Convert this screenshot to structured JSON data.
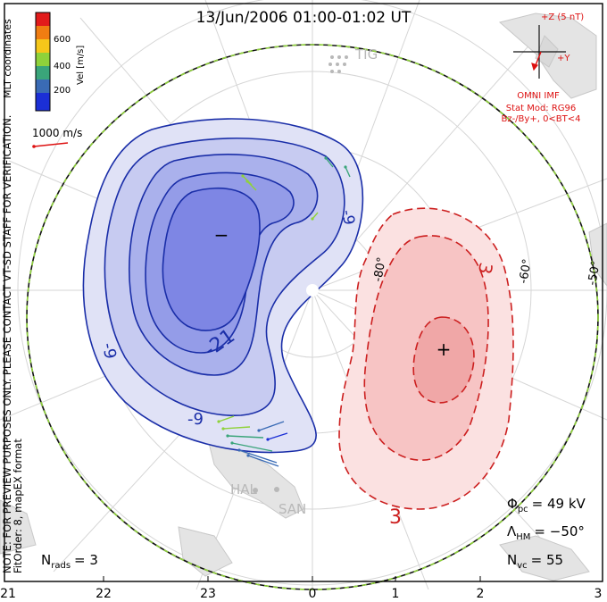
{
  "title": "13/Jun/2006 01:00-01:02 UT",
  "side_note": "NOTE: FOR PREVIEW PURPOSES ONLY. PLEASE CONTACT VT-SD STAFF FOR VERIFICATION.",
  "side_note2": "FitOrder: 8, mapEX format",
  "coords_label": "MLT coordinates",
  "colorbar": {
    "label": "Vel [m/s]",
    "ticks": [
      "600",
      "400",
      "200"
    ],
    "colors": [
      "#e21b1b",
      "#f07d12",
      "#f5c71a",
      "#8fd23a",
      "#3aa57a",
      "#3a6bb5",
      "#1b2fd6"
    ]
  },
  "vector_scale": "1000 m/s",
  "imf": {
    "z_label": "+Z (5 nT)",
    "y_label": "+Y",
    "source": "OMNI IMF",
    "model_line1": "Stat Mod: RG96",
    "model_line2": "Bz-/By+, 0<BT<4"
  },
  "stations": [
    "TIG",
    "HAL",
    "SAN"
  ],
  "latitude_labels": [
    "-80°",
    "-60°",
    "-50°"
  ],
  "contour_labels": {
    "neg": [
      "-9",
      "-21",
      "-9",
      "-9"
    ],
    "pos": [
      "3",
      "3"
    ]
  },
  "extrema": {
    "min": "−",
    "max": "+"
  },
  "stats": {
    "phi_label": "Φ",
    "phi_sub": "pc",
    "phi_value": "= 49 kV",
    "lambda_label": "Λ",
    "lambda_sub": "HM",
    "lambda_value": "= −50°",
    "nvc_label": "N",
    "nvc_sub": "vc",
    "nvc_value": "= 55",
    "nrads_label": "N",
    "nrads_sub": "rads",
    "nrads_value": "= 3"
  },
  "mlt_ticks": [
    "21",
    "22",
    "23",
    "0",
    "1",
    "2",
    "3"
  ],
  "colors": {
    "neg_contour": "#1a2ea8",
    "pos_contour": "#cc1f1f",
    "neg_fill": "#6f78e6",
    "pos_fill": "#ef9a9a"
  }
}
